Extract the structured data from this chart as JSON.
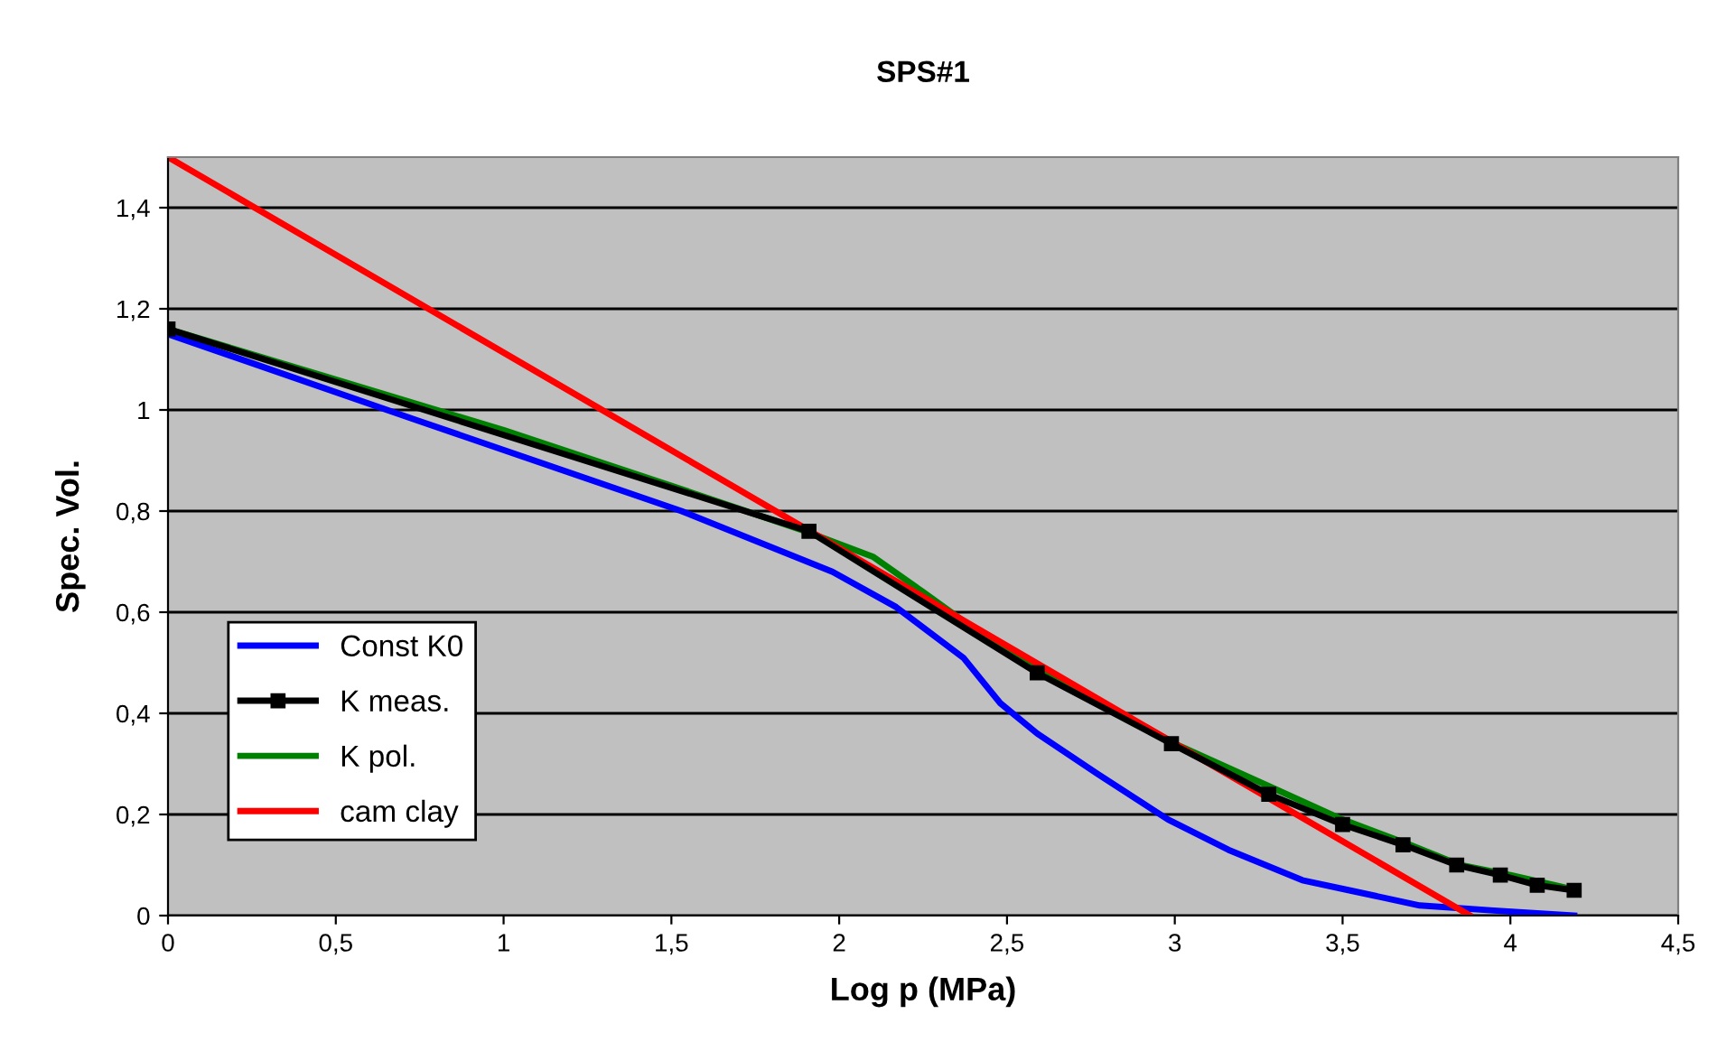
{
  "chart_data": {
    "type": "line",
    "title": "SPS#1",
    "xlabel": "Log p (MPa)",
    "ylabel": "Spec. Vol.",
    "xlim": [
      0,
      4.5
    ],
    "ylim": [
      0,
      1.5
    ],
    "xticks": [
      0,
      {
        "value": 0.5,
        "label": "0,5"
      },
      1,
      {
        "value": 1.5,
        "label": "1,5"
      },
      2,
      {
        "value": 2.5,
        "label": "2,5"
      },
      3,
      {
        "value": 3.5,
        "label": "3,5"
      },
      4,
      {
        "value": 4.5,
        "label": "4,5"
      }
    ],
    "yticks": [
      0,
      {
        "value": 0.2,
        "label": "0,2"
      },
      {
        "value": 0.4,
        "label": "0,4"
      },
      {
        "value": 0.6,
        "label": "0,6"
      },
      {
        "value": 0.8,
        "label": "0,8"
      },
      1,
      {
        "value": 1.2,
        "label": "1,2"
      },
      {
        "value": 1.4,
        "label": "1,4"
      }
    ],
    "grid": "y",
    "legend": "bottom left",
    "series": [
      {
        "name": "Const K0",
        "color": "#0000ff",
        "marker": "none",
        "x": [
          0,
          0.74,
          1.53,
          1.98,
          2.17,
          2.37,
          2.48,
          2.59,
          2.77,
          2.98,
          3.16,
          3.38,
          3.52,
          3.73,
          3.95,
          4.19
        ],
        "values": [
          1.15,
          0.98,
          0.8,
          0.68,
          0.61,
          0.51,
          0.42,
          0.36,
          0.28,
          0.19,
          0.13,
          0.07,
          0.05,
          0.02,
          0.01,
          0.0
        ]
      },
      {
        "name": "K meas.",
        "color": "#000000",
        "marker": "square",
        "x": [
          0,
          1.91,
          2.59,
          2.99,
          3.28,
          3.5,
          3.68,
          3.84,
          3.97,
          4.08,
          4.19
        ],
        "values": [
          1.16,
          0.76,
          0.48,
          0.34,
          0.24,
          0.18,
          0.14,
          0.1,
          0.08,
          0.06,
          0.05
        ]
      },
      {
        "name": "K pol.",
        "color": "#008000",
        "marker": "none",
        "x": [
          0,
          0.5,
          1,
          1.5,
          1.9,
          2.1,
          2.25,
          2.48,
          2.6,
          3.0,
          3.3,
          3.5,
          3.7,
          3.85,
          4.0,
          4.2
        ],
        "values": [
          1.16,
          1.06,
          0.96,
          0.85,
          0.76,
          0.71,
          0.64,
          0.53,
          0.49,
          0.34,
          0.25,
          0.19,
          0.14,
          0.1,
          0.08,
          0.05
        ]
      },
      {
        "name": "cam clay",
        "color": "#ff0000",
        "marker": "none",
        "x": [
          0,
          3.88
        ],
        "values": [
          1.5,
          0.0
        ]
      }
    ]
  }
}
